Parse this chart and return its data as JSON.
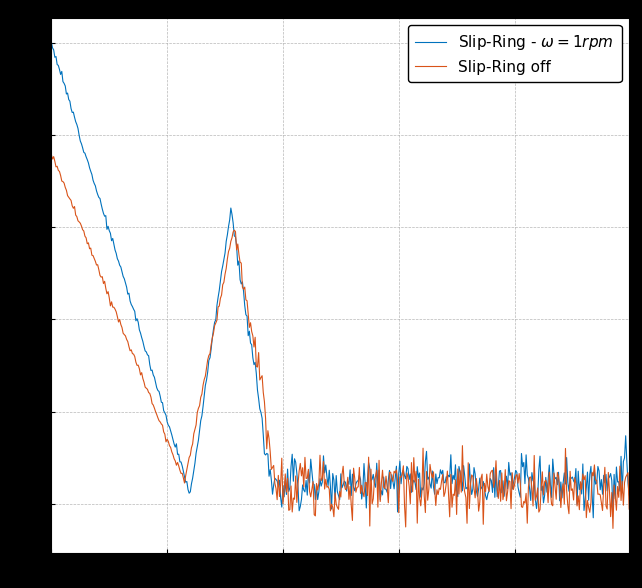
{
  "color1": "#0072BD",
  "color2": "#D95319",
  "linewidth": 0.8,
  "figsize": [
    6.42,
    5.88
  ],
  "dpi": 100,
  "facecolor_fig": "#000000",
  "facecolor_ax": "#ffffff",
  "legend_label1": "Slip-Ring - $\\omega = 1rpm$",
  "legend_label2": "Slip-Ring off",
  "grid_color": "#b0b0b0",
  "grid_linestyle": "--",
  "grid_linewidth": 0.5,
  "n_points": 500,
  "seed": 12
}
